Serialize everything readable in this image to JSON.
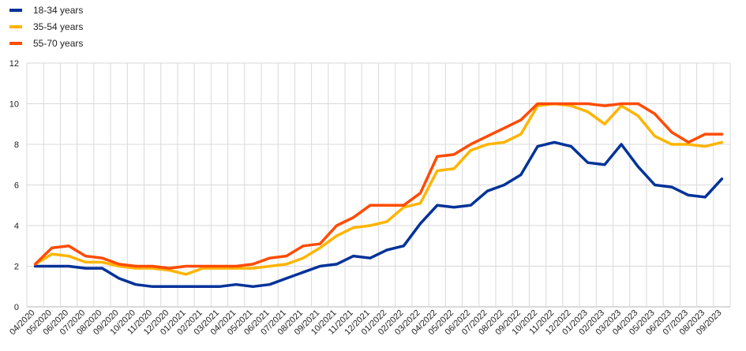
{
  "chart_data": {
    "type": "line",
    "title": "",
    "xlabel": "",
    "ylabel": "",
    "ylim": [
      0,
      12
    ],
    "yticks": [
      0,
      2,
      4,
      6,
      8,
      10,
      12
    ],
    "grid": true,
    "legend_position": "top-left",
    "categories": [
      "04/2020",
      "05/2020",
      "06/2020",
      "07/2020",
      "08/2020",
      "09/2020",
      "10/2020",
      "11/2020",
      "12/2020",
      "01/2021",
      "02/2021",
      "03/2021",
      "04/2021",
      "05/2021",
      "06/2021",
      "07/2021",
      "08/2021",
      "09/2021",
      "10/2021",
      "11/2021",
      "12/2021",
      "01/2022",
      "02/2022",
      "03/2022",
      "04/2022",
      "05/2022",
      "06/2022",
      "07/2022",
      "08/2022",
      "09/2022",
      "10/2022",
      "11/2022",
      "12/2022",
      "01/2023",
      "02/2023",
      "03/2023",
      "04/2023",
      "05/2023",
      "06/2023",
      "07/2023",
      "08/2023",
      "09/2023"
    ],
    "series": [
      {
        "name": "18-34 years",
        "color": "#003299",
        "values": [
          2.0,
          2.0,
          2.0,
          1.9,
          1.9,
          1.4,
          1.1,
          1.0,
          1.0,
          1.0,
          1.0,
          1.0,
          1.1,
          1.0,
          1.1,
          1.4,
          1.7,
          2.0,
          2.1,
          2.5,
          2.4,
          2.8,
          3.0,
          4.1,
          5.0,
          4.9,
          5.0,
          5.7,
          6.0,
          6.5,
          7.9,
          8.1,
          7.9,
          7.1,
          7.0,
          8.0,
          6.9,
          6.0,
          5.9,
          5.5,
          5.4,
          6.3
        ]
      },
      {
        "name": "35-54 years",
        "color": "#FFB400",
        "values": [
          2.1,
          2.6,
          2.5,
          2.2,
          2.2,
          2.0,
          1.9,
          1.9,
          1.8,
          1.6,
          1.9,
          1.9,
          1.9,
          1.9,
          2.0,
          2.1,
          2.4,
          2.9,
          3.5,
          3.9,
          4.0,
          4.2,
          4.9,
          5.1,
          6.7,
          6.8,
          7.7,
          8.0,
          8.1,
          8.5,
          9.9,
          10.0,
          9.9,
          9.6,
          9.0,
          9.9,
          9.4,
          8.4,
          8.0,
          8.0,
          7.9,
          8.1
        ]
      },
      {
        "name": "55-70 years",
        "color": "#FF4B00",
        "values": [
          2.1,
          2.9,
          3.0,
          2.5,
          2.4,
          2.1,
          2.0,
          2.0,
          1.9,
          2.0,
          2.0,
          2.0,
          2.0,
          2.1,
          2.4,
          2.5,
          3.0,
          3.1,
          4.0,
          4.4,
          5.0,
          5.0,
          5.0,
          5.6,
          7.4,
          7.5,
          8.0,
          8.4,
          8.8,
          9.2,
          10.0,
          10.0,
          10.0,
          10.0,
          9.9,
          10.0,
          10.0,
          9.5,
          8.6,
          8.1,
          8.5,
          8.5
        ]
      }
    ]
  }
}
